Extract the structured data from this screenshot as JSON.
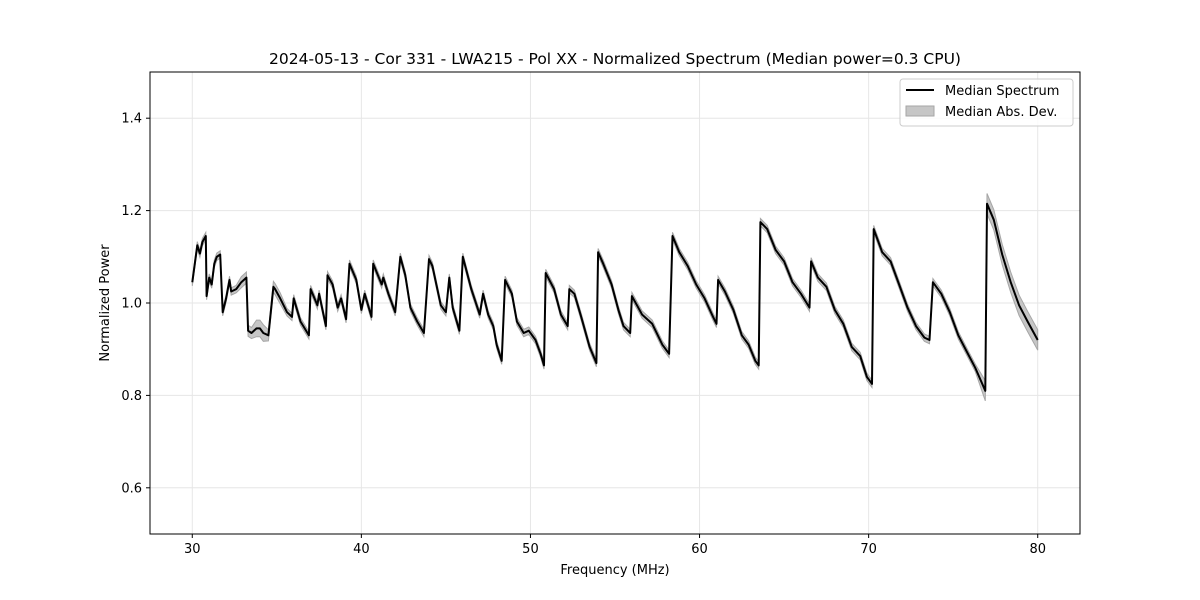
{
  "chart_data": {
    "type": "line",
    "title": "2024-05-13 - Cor 331 - LWA215 - Pol XX - Normalized Spectrum (Median power=0.3 CPU)",
    "xlabel": "Frequency (MHz)",
    "ylabel": "Normalized Power",
    "xlim": [
      27.5,
      82.5
    ],
    "ylim": [
      0.5,
      1.5
    ],
    "xticks": [
      30,
      40,
      50,
      60,
      70,
      80
    ],
    "xtick_labels": [
      "30",
      "40",
      "50",
      "60",
      "70",
      "80"
    ],
    "yticks": [
      0.6,
      0.8,
      1.0,
      1.2,
      1.4
    ],
    "ytick_labels": [
      "0.6",
      "0.8",
      "1.0",
      "1.2",
      "1.4"
    ],
    "grid": true,
    "legend_position": "top-right",
    "legend": [
      "Median Spectrum",
      "Median Abs. Dev."
    ],
    "series": [
      {
        "name": "Median Spectrum",
        "kind": "line",
        "x": [
          30.0,
          30.3,
          30.45,
          30.6,
          30.8,
          30.85,
          31.0,
          31.15,
          31.3,
          31.45,
          31.65,
          31.8,
          32.0,
          32.2,
          32.3,
          32.6,
          32.9,
          33.2,
          33.3,
          33.5,
          33.8,
          34.0,
          34.2,
          34.5,
          34.8,
          34.9,
          35.2,
          35.6,
          35.9,
          36.0,
          36.4,
          36.9,
          37.0,
          37.4,
          37.5,
          37.9,
          38.0,
          38.3,
          38.6,
          38.8,
          39.1,
          39.3,
          39.7,
          40.0,
          40.2,
          40.6,
          40.7,
          41.2,
          41.3,
          41.6,
          42.0,
          42.3,
          42.6,
          42.9,
          43.3,
          43.7,
          44.0,
          44.2,
          44.7,
          45.0,
          45.2,
          45.4,
          45.8,
          46.0,
          46.5,
          47.0,
          47.2,
          47.5,
          47.8,
          48.0,
          48.3,
          48.5,
          48.9,
          49.2,
          49.6,
          49.9,
          50.3,
          50.6,
          50.8,
          50.9,
          51.4,
          51.8,
          52.2,
          52.3,
          52.6,
          53.0,
          53.5,
          53.9,
          54.0,
          54.3,
          54.8,
          55.2,
          55.5,
          55.9,
          56.0,
          56.6,
          57.2,
          57.8,
          58.1,
          58.2,
          58.4,
          58.8,
          59.3,
          59.8,
          60.3,
          60.8,
          61.0,
          61.1,
          61.5,
          62.0,
          62.5,
          62.9,
          63.3,
          63.5,
          63.6,
          64.0,
          64.5,
          65.0,
          65.5,
          66.0,
          66.5,
          66.6,
          67.0,
          67.5,
          68.0,
          68.5,
          69.0,
          69.5,
          69.9,
          70.2,
          70.3,
          70.8,
          71.3,
          71.8,
          72.3,
          72.8,
          73.3,
          73.6,
          73.8,
          74.3,
          74.8,
          75.3,
          75.8,
          76.3,
          76.9,
          77.0,
          77.4,
          77.9,
          78.4,
          78.9,
          79.4,
          80.0
        ],
        "values": [
          1.045,
          1.125,
          1.107,
          1.132,
          1.145,
          1.015,
          1.055,
          1.04,
          1.085,
          1.1,
          1.105,
          0.98,
          1.01,
          1.05,
          1.025,
          1.03,
          1.045,
          1.055,
          0.94,
          0.935,
          0.945,
          0.945,
          0.935,
          0.93,
          1.035,
          1.03,
          1.01,
          0.98,
          0.97,
          1.01,
          0.96,
          0.93,
          1.03,
          0.995,
          1.02,
          0.95,
          1.06,
          1.04,
          0.99,
          1.01,
          0.965,
          1.085,
          1.05,
          0.985,
          1.02,
          0.97,
          1.085,
          1.04,
          1.055,
          1.02,
          0.98,
          1.1,
          1.06,
          0.99,
          0.96,
          0.935,
          1.095,
          1.08,
          0.995,
          0.98,
          1.055,
          0.99,
          0.94,
          1.1,
          1.03,
          0.975,
          1.02,
          0.975,
          0.95,
          0.91,
          0.875,
          1.05,
          1.02,
          0.96,
          0.935,
          0.94,
          0.92,
          0.89,
          0.865,
          1.065,
          1.03,
          0.975,
          0.95,
          1.03,
          1.02,
          0.97,
          0.905,
          0.87,
          1.11,
          1.085,
          1.04,
          0.985,
          0.95,
          0.935,
          1.015,
          0.975,
          0.955,
          0.91,
          0.895,
          0.89,
          1.145,
          1.11,
          1.08,
          1.04,
          1.01,
          0.97,
          0.955,
          1.05,
          1.025,
          0.985,
          0.93,
          0.91,
          0.875,
          0.865,
          1.175,
          1.16,
          1.115,
          1.09,
          1.045,
          1.02,
          0.99,
          1.09,
          1.055,
          1.035,
          0.985,
          0.955,
          0.905,
          0.885,
          0.84,
          0.825,
          1.16,
          1.11,
          1.09,
          1.04,
          0.99,
          0.95,
          0.925,
          0.92,
          1.045,
          1.02,
          0.98,
          0.93,
          0.895,
          0.86,
          0.81,
          1.215,
          1.18,
          1.105,
          1.045,
          0.995,
          0.96,
          0.92
        ]
      },
      {
        "name": "Median Abs. Dev.",
        "kind": "band",
        "x": [
          33.3,
          34.0,
          34.9
        ],
        "spread": [
          0.012,
          0.018,
          0.012
        ],
        "default_spread": 0.008,
        "wide_regions": [
          {
            "from": 76.9,
            "to": 80.0,
            "spread": 0.022
          }
        ]
      }
    ]
  }
}
